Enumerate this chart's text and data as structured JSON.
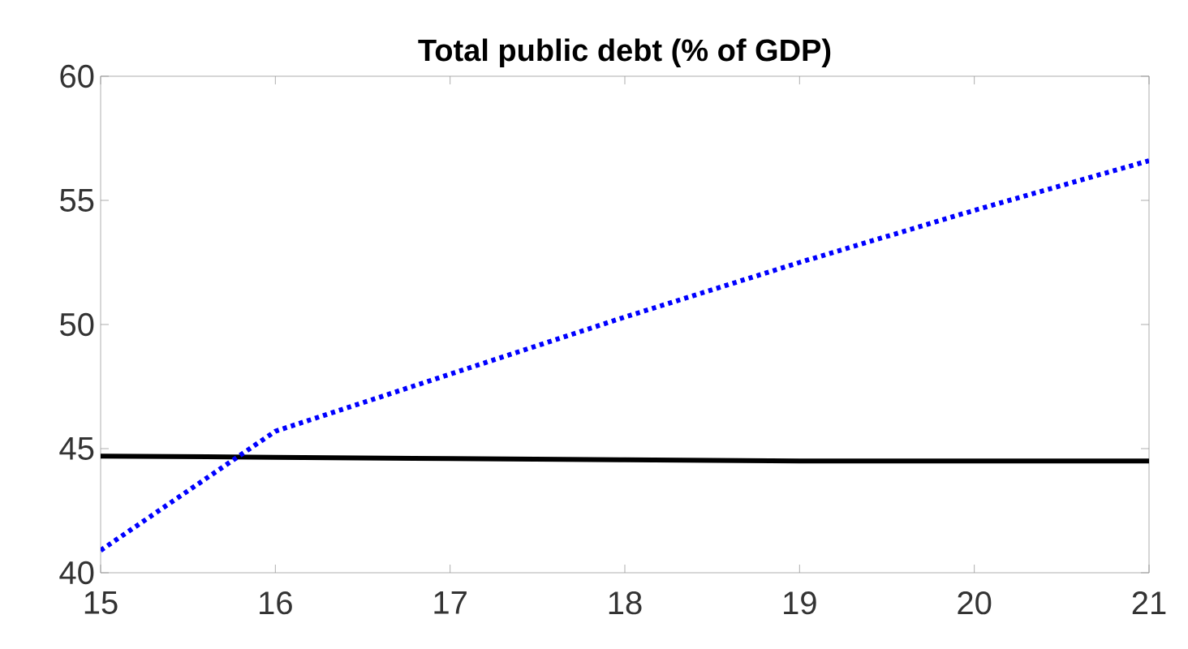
{
  "chart_data": {
    "type": "line",
    "title": "Total public debt (% of GDP)",
    "x": [
      15,
      16,
      17,
      18,
      19,
      20,
      21
    ],
    "series": [
      {
        "color": "#000000",
        "line_style": "solid",
        "values": [
          44.7,
          44.65,
          44.6,
          44.55,
          44.5,
          44.5,
          44.5
        ]
      },
      {
        "color": "#0000ff",
        "line_style": "dotted",
        "values": [
          40.9,
          45.7,
          48.0,
          50.3,
          52.5,
          54.6,
          56.6
        ]
      }
    ],
    "xlim": [
      15,
      21
    ],
    "ylim": [
      40,
      60
    ],
    "xticks": [
      15,
      16,
      17,
      18,
      19,
      20,
      21
    ],
    "yticks": [
      40,
      45,
      50,
      55,
      60
    ],
    "grid": false,
    "marker": "none"
  }
}
